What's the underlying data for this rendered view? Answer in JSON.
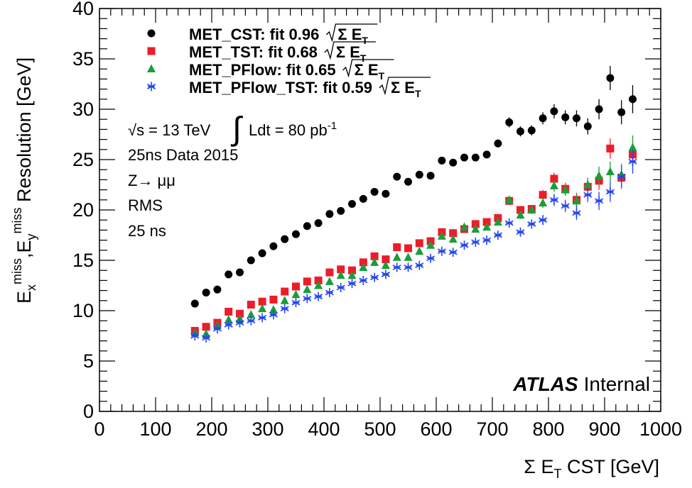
{
  "chart_data": {
    "type": "scatter",
    "xlabel": "Σ E_T CST [GeV]",
    "ylabel": "E_x^miss, E_y^miss Resolution [GeV]",
    "xlim": [
      0,
      1000
    ],
    "ylim": [
      0,
      40
    ],
    "x_ticks": [
      0,
      100,
      200,
      300,
      400,
      500,
      600,
      700,
      800,
      900,
      1000
    ],
    "y_ticks": [
      0,
      5,
      10,
      15,
      20,
      25,
      30,
      35,
      40
    ],
    "grid": false,
    "legend_position": "top-left",
    "annotations": {
      "sqrt_s": "√s = 13 TeV",
      "lumi": "Ldt = 80 pb",
      "lumi_exp": "-1",
      "dataset": "25ns Data 2015",
      "process": "Z→ μμ",
      "method": "RMS",
      "bunch": "25 ns",
      "atlas_bold": "ATLAS",
      "atlas_rest": "Internal"
    },
    "x": [
      170,
      190,
      210,
      230,
      250,
      270,
      290,
      310,
      330,
      350,
      370,
      390,
      410,
      430,
      450,
      470,
      490,
      510,
      530,
      550,
      570,
      590,
      610,
      630,
      650,
      670,
      690,
      710,
      730,
      750,
      770,
      790,
      810,
      830,
      850,
      870,
      890,
      910,
      930,
      950
    ],
    "series": [
      {
        "name": "MET_CST",
        "legend": "MET_CST: fit 0.96",
        "marker": "circle",
        "color": "#000000",
        "values": [
          10.7,
          11.8,
          12.1,
          13.6,
          13.8,
          15.0,
          15.7,
          16.4,
          17.1,
          17.6,
          18.4,
          18.7,
          19.6,
          19.9,
          20.6,
          21.1,
          21.8,
          21.6,
          23.3,
          22.8,
          23.5,
          23.4,
          24.9,
          24.7,
          25.2,
          25.2,
          25.5,
          26.6,
          28.7,
          27.8,
          27.9,
          29.1,
          29.8,
          29.2,
          29.1,
          28.3,
          30.0,
          33.1,
          29.7,
          31.0
        ],
        "errors": [
          0.3,
          0.3,
          0.3,
          0.3,
          0.3,
          0.3,
          0.3,
          0.3,
          0.3,
          0.3,
          0.3,
          0.3,
          0.3,
          0.3,
          0.3,
          0.3,
          0.3,
          0.3,
          0.3,
          0.3,
          0.3,
          0.3,
          0.3,
          0.3,
          0.3,
          0.3,
          0.3,
          0.4,
          0.5,
          0.5,
          0.5,
          0.6,
          0.7,
          0.7,
          0.8,
          0.8,
          1.0,
          1.2,
          1.2,
          1.4
        ]
      },
      {
        "name": "MET_TST",
        "legend": "MET_TST: fit 0.68",
        "marker": "square",
        "color": "#ee1c2a",
        "values": [
          8.0,
          8.4,
          8.8,
          9.9,
          9.7,
          10.6,
          10.9,
          11.1,
          11.9,
          12.4,
          12.9,
          13.0,
          13.8,
          14.1,
          14.0,
          14.8,
          15.4,
          15.1,
          16.3,
          16.2,
          16.7,
          16.9,
          17.8,
          17.7,
          18.1,
          18.6,
          18.8,
          19.2,
          20.9,
          20.0,
          20.1,
          21.5,
          23.1,
          22.1,
          21.0,
          22.3,
          22.9,
          26.1,
          23.2,
          25.5
        ],
        "errors": [
          0.2,
          0.2,
          0.2,
          0.2,
          0.2,
          0.2,
          0.2,
          0.2,
          0.2,
          0.2,
          0.2,
          0.2,
          0.2,
          0.2,
          0.2,
          0.2,
          0.2,
          0.2,
          0.2,
          0.2,
          0.2,
          0.2,
          0.2,
          0.2,
          0.2,
          0.2,
          0.3,
          0.3,
          0.4,
          0.4,
          0.4,
          0.5,
          0.6,
          0.6,
          0.7,
          0.7,
          0.9,
          1.0,
          1.1,
          1.2
        ]
      },
      {
        "name": "MET_PFlow",
        "legend": "MET_PFlow: fit 0.65",
        "marker": "triangle",
        "color": "#1a9e3a",
        "values": [
          7.8,
          7.7,
          8.5,
          9.1,
          9.2,
          9.6,
          10.2,
          10.1,
          11.0,
          11.6,
          12.1,
          12.5,
          12.9,
          13.5,
          13.5,
          14.3,
          14.8,
          14.5,
          15.3,
          15.3,
          15.9,
          16.5,
          17.4,
          17.1,
          18.3,
          18.1,
          18.3,
          18.8,
          21.0,
          19.5,
          20.0,
          20.7,
          22.4,
          22.0,
          20.9,
          22.5,
          23.4,
          23.8,
          23.5,
          26.2
        ],
        "errors": [
          0.2,
          0.2,
          0.2,
          0.2,
          0.2,
          0.2,
          0.2,
          0.2,
          0.2,
          0.2,
          0.2,
          0.2,
          0.2,
          0.2,
          0.2,
          0.2,
          0.2,
          0.2,
          0.2,
          0.2,
          0.2,
          0.2,
          0.2,
          0.2,
          0.2,
          0.2,
          0.3,
          0.3,
          0.4,
          0.4,
          0.4,
          0.5,
          0.6,
          0.6,
          0.7,
          0.7,
          0.9,
          1.0,
          1.1,
          1.2
        ]
      },
      {
        "name": "MET_PFlow_TST",
        "legend": "MET_PFlow_TST: fit 0.59",
        "marker": "star",
        "color": "#2244ee",
        "values": [
          7.5,
          7.3,
          8.2,
          8.6,
          8.8,
          9.0,
          9.3,
          9.6,
          10.2,
          10.8,
          11.2,
          11.4,
          11.8,
          12.3,
          12.7,
          13.0,
          13.3,
          13.6,
          14.3,
          14.3,
          14.5,
          15.2,
          15.9,
          15.8,
          16.5,
          16.8,
          17.0,
          17.5,
          18.7,
          17.8,
          18.6,
          19.0,
          21.0,
          20.4,
          19.7,
          21.5,
          20.9,
          21.8,
          23.3,
          24.8
        ],
        "errors": [
          0.2,
          0.2,
          0.2,
          0.2,
          0.2,
          0.2,
          0.2,
          0.2,
          0.2,
          0.2,
          0.2,
          0.2,
          0.2,
          0.2,
          0.2,
          0.2,
          0.2,
          0.2,
          0.2,
          0.2,
          0.2,
          0.2,
          0.2,
          0.2,
          0.2,
          0.2,
          0.3,
          0.3,
          0.4,
          0.4,
          0.4,
          0.5,
          0.6,
          0.6,
          0.7,
          0.7,
          0.9,
          1.0,
          1.1,
          1.2
        ]
      }
    ],
    "legend_suffix": "Σ E",
    "legend_suffix_sub": "T"
  }
}
